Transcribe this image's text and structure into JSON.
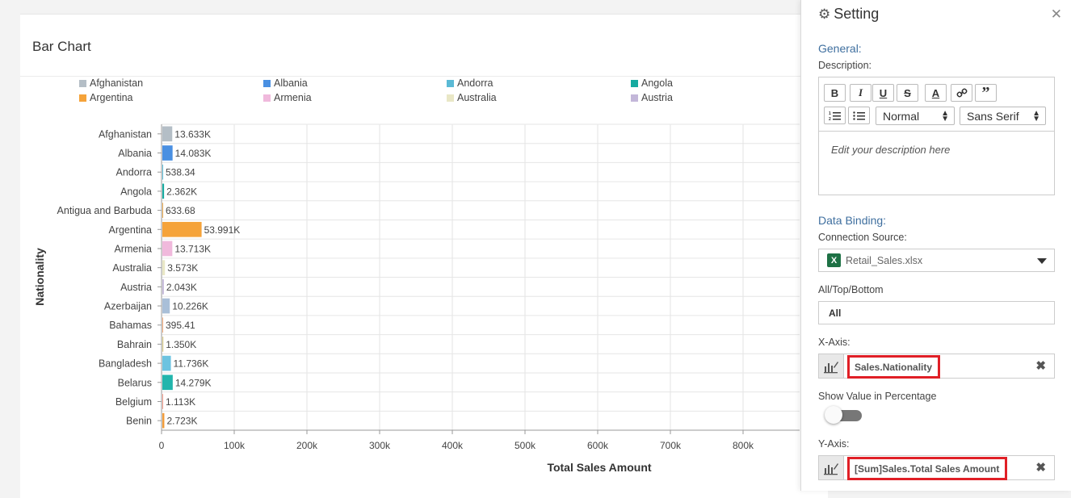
{
  "chart_card": {
    "title": "Bar Chart"
  },
  "chart_data": {
    "type": "bar",
    "orientation": "horizontal",
    "xlabel": "Total Sales Amount",
    "ylabel": "Nationality",
    "xlim": [
      0,
      1000000
    ],
    "x_ticks": [
      "0",
      "100k",
      "200k",
      "300k",
      "400k",
      "500k",
      "600k",
      "700k",
      "800k"
    ],
    "grid": true,
    "categories": [
      "Afghanistan",
      "Albania",
      "Andorra",
      "Angola",
      "Antigua and Barbuda",
      "Argentina",
      "Armenia",
      "Australia",
      "Austria",
      "Azerbaijan",
      "Bahamas",
      "Bahrain",
      "Bangladesh",
      "Belarus",
      "Belgium",
      "Benin"
    ],
    "values": [
      13633,
      14083,
      538.34,
      2362,
      633.68,
      53991,
      13713,
      3573,
      2043,
      10226,
      395.41,
      1350,
      11736,
      14279,
      1113,
      2723
    ],
    "value_labels": [
      "13.633K",
      "14.083K",
      "538.34",
      "2.362K",
      "633.68",
      "53.991K",
      "13.713K",
      "3.573K",
      "2.043K",
      "10.226K",
      "395.41",
      "1.350K",
      "11.736K",
      "14.279K",
      "1.113K",
      "2.723K"
    ],
    "colors": [
      "#b4bec6",
      "#4a90e2",
      "#5bbad5",
      "#16aaa0",
      "#e9a84d",
      "#f5a33a",
      "#f0b9dc",
      "#e9e7c6",
      "#c3b7d9",
      "#a9bfd8",
      "#f0a97a",
      "#d7c98a",
      "#6cc3e0",
      "#22b5ac",
      "#f39c8a",
      "#f29d3a"
    ],
    "legend": {
      "placement": "top",
      "entries": [
        {
          "name": "Afghanistan",
          "color": "#b4bec6"
        },
        {
          "name": "Albania",
          "color": "#4a90e2"
        },
        {
          "name": "Andorra",
          "color": "#5bbad5"
        },
        {
          "name": "Angola",
          "color": "#16aaa0"
        },
        {
          "name": "Argentina",
          "color": "#f5a33a"
        },
        {
          "name": "Armenia",
          "color": "#f0b9dc"
        },
        {
          "name": "Australia",
          "color": "#e9e7c6"
        },
        {
          "name": "Austria",
          "color": "#c3b7d9"
        }
      ]
    }
  },
  "settings": {
    "title": "Setting",
    "close_icon": "close-icon",
    "general": {
      "section_title": "General:",
      "description_label": "Description:",
      "toolbar": {
        "bold": "B",
        "italic": "I",
        "underline": "U",
        "strike": "S",
        "font_color": "A",
        "link": "🔗",
        "quote": "”",
        "ordered_list": "☰",
        "bullet_list": "☰",
        "size_value": "Normal",
        "font_value": "Sans Serif"
      },
      "description_placeholder": "Edit your description here"
    },
    "data_binding": {
      "section_title": "Data Binding:",
      "connection_label": "Connection Source:",
      "connection_value": "Retail_Sales.xlsx",
      "all_top_bottom_label": "All/Top/Bottom",
      "all_top_bottom_value": "All",
      "x_axis_label": "X-Axis:",
      "x_axis_value": "Sales.Nationality",
      "show_percentage_label": "Show Value in Percentage",
      "show_percentage_on": false,
      "y_axis_label": "Y-Axis:",
      "y_axis_value": "[Sum]Sales.Total Sales Amount",
      "remove_symbol": "✖"
    }
  }
}
